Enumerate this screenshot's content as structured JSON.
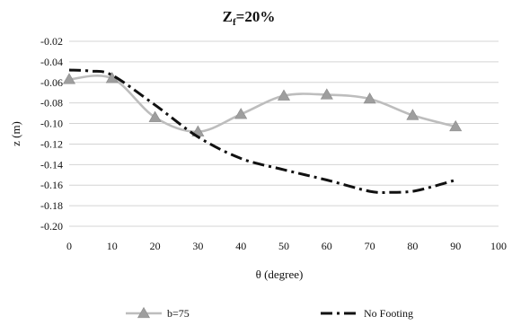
{
  "chart_data": {
    "type": "line",
    "title_main": "Z",
    "title_sub": "f",
    "title_rest": "=20%",
    "xlabel": "θ (degree)",
    "ylabel": "z (m)",
    "xlim": [
      0,
      100
    ],
    "ylim": [
      -0.2,
      -0.02
    ],
    "x_ticks": [
      "0",
      "10",
      "20",
      "30",
      "40",
      "50",
      "60",
      "70",
      "80",
      "90",
      "100"
    ],
    "y_ticks": [
      "-0.02",
      "-0.04",
      "-0.06",
      "-0.08",
      "-0.10",
      "-0.12",
      "-0.14",
      "-0.16",
      "-0.18",
      "-0.20"
    ],
    "grid": "horizontal",
    "legend_position": "bottom",
    "series": [
      {
        "name": "b=75",
        "color": "#bdbdbd",
        "marker": "triangle",
        "style": "solid",
        "x": [
          0,
          10,
          20,
          30,
          40,
          50,
          60,
          70,
          80,
          90
        ],
        "y": [
          -0.057,
          -0.056,
          -0.094,
          -0.108,
          -0.091,
          -0.073,
          -0.072,
          -0.076,
          -0.092,
          -0.103
        ]
      },
      {
        "name": "No Footing",
        "color": "#111111",
        "marker": "none",
        "style": "dash-dot",
        "x": [
          0,
          5,
          10,
          20,
          30,
          40,
          50,
          60,
          70,
          75,
          80,
          85,
          90
        ],
        "y": [
          -0.048,
          -0.049,
          -0.053,
          -0.082,
          -0.113,
          -0.134,
          -0.145,
          -0.155,
          -0.166,
          -0.167,
          -0.166,
          -0.161,
          -0.155
        ]
      }
    ]
  }
}
